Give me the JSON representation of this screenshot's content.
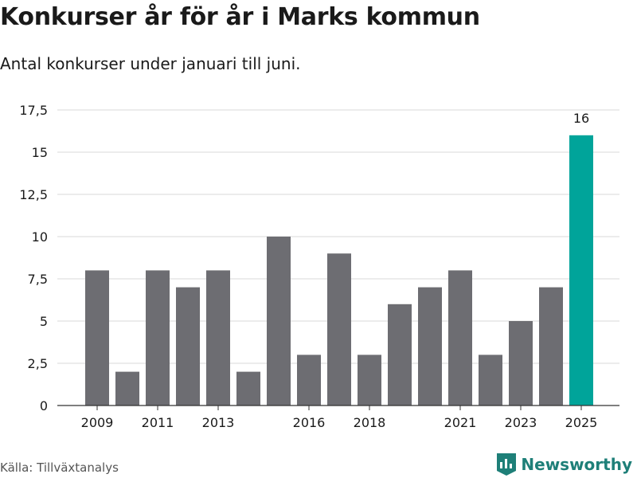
{
  "title": "Konkurser år för år i Marks kommun",
  "subtitle": "Antal konkurser under januari till juni.",
  "source": "Källa: Tillväxtanalys",
  "brand": "Newsworthy",
  "icons": {
    "brand_logo": "bar-chart-logo-icon"
  },
  "colors": {
    "bar": "#6d6d72",
    "highlight": "#00a49a",
    "grid": "#d9d9d9",
    "brand": "#1e7f78"
  },
  "chart_data": {
    "type": "bar",
    "x": [
      2009,
      2010,
      2011,
      2012,
      2013,
      2014,
      2015,
      2016,
      2017,
      2018,
      2019,
      2020,
      2021,
      2022,
      2023,
      2024,
      2025
    ],
    "values": [
      8,
      2,
      8,
      7,
      8,
      2,
      10,
      3,
      9,
      3,
      6,
      7,
      8,
      3,
      5,
      7,
      16
    ],
    "x_tick_labels": [
      "2009",
      "2011",
      "2013",
      "2016",
      "2018",
      "2021",
      "2023",
      "2025"
    ],
    "y_tick_labels": [
      "0",
      "2,5",
      "5",
      "7,5",
      "10",
      "12,5",
      "15",
      "17,5"
    ],
    "y_ticks": [
      0,
      2.5,
      5,
      7.5,
      10,
      12.5,
      15,
      17.5
    ],
    "ylim": [
      0,
      17.5
    ],
    "highlight_index": 16,
    "data_labels": [
      {
        "index": 16,
        "text": "16"
      }
    ],
    "grid": true
  }
}
